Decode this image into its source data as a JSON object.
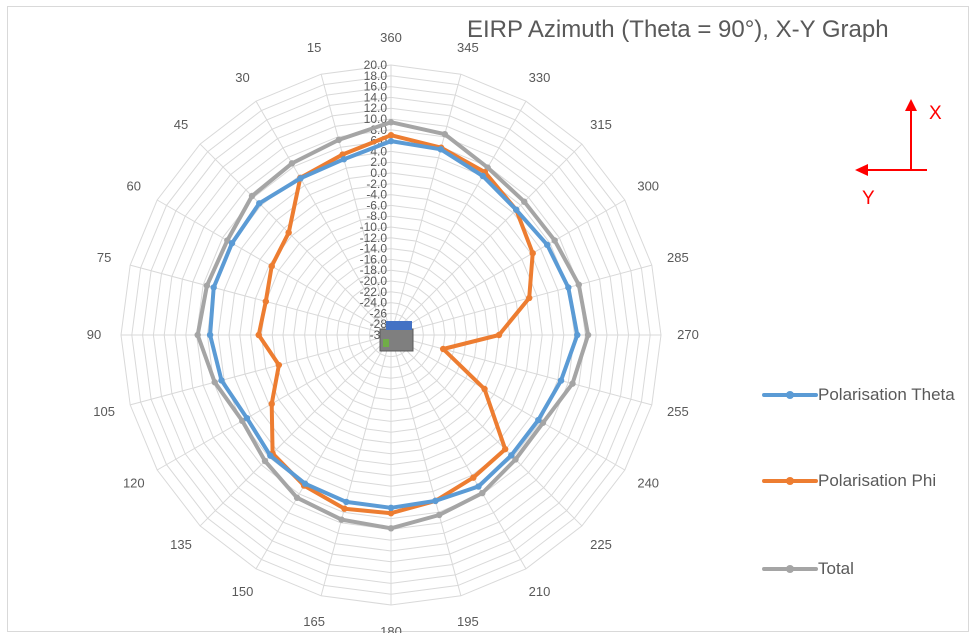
{
  "chart_data": {
    "type": "radar",
    "title": "EIRP Azimuth  (Theta = 90°), X-Y Graph",
    "angles": [
      360,
      345,
      330,
      315,
      300,
      285,
      270,
      255,
      240,
      225,
      210,
      195,
      180,
      165,
      150,
      135,
      120,
      105,
      90,
      75,
      60,
      45,
      30,
      15
    ],
    "radial_tick_labels": [
      "20.0",
      "18.0",
      "16.0",
      "14.0",
      "12.0",
      "10.0",
      "8.0",
      "6.0",
      "4.0",
      "2.0",
      "0.0",
      "-2.0",
      "-4.0",
      "-6.0",
      "-8.0",
      "-10.0",
      "-12.0",
      "-14.0",
      "-16.0",
      "-18.0",
      "-20.0",
      "-22.0",
      "-24.0",
      "-26",
      "-28",
      "-30"
    ],
    "rlim": [
      -30,
      20
    ],
    "grid": true,
    "legend_position": "right",
    "series": [
      {
        "name": "Polarisation Theta",
        "color": "#5b9bd5",
        "values": [
          5.9,
          5.6,
          4.0,
          2.8,
          3.4,
          4.0,
          4.5,
          2.6,
          1.5,
          1.5,
          2.4,
          1.8,
          2.0,
          2.0,
          1.8,
          1.6,
          0.8,
          2.5,
          3.5,
          4.0,
          4.0,
          4.5,
          3.5,
          3.7
        ]
      },
      {
        "name": "Polarisation Phi",
        "color": "#ed7d31",
        "values": [
          7.0,
          5.9,
          4.8,
          2.8,
          0.3,
          -3.5,
          -10.0,
          -20.0,
          -10.0,
          -0.1,
          0.5,
          1.8,
          3.0,
          3.3,
          2.2,
          1.0,
          -4.5,
          -8.5,
          -5.5,
          -6.0,
          -4.5,
          -3.2,
          3.6,
          4.6
        ]
      },
      {
        "name": "Total",
        "color": "#a5a5a5",
        "values": [
          9.4,
          8.5,
          5.8,
          4.9,
          5.0,
          6.0,
          6.5,
          4.8,
          2.5,
          2.6,
          3.8,
          4.5,
          5.8,
          5.4,
          4.8,
          3.0,
          1.8,
          3.8,
          5.8,
          5.3,
          5.0,
          6.4,
          6.7,
          7.4
        ]
      }
    ]
  },
  "axes_hint": {
    "x_label": "X",
    "y_label": "Y",
    "color": "#ff0000"
  }
}
